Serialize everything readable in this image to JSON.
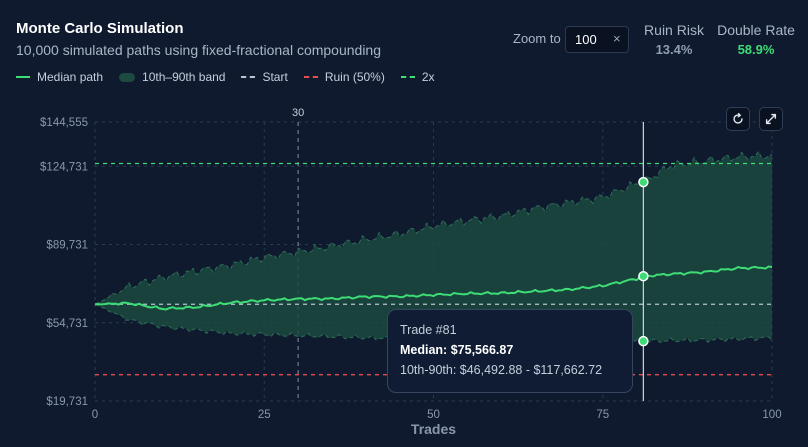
{
  "header": {
    "title": "Monte Carlo Simulation",
    "subtitle": "10,000 simulated paths using fixed-fractional compounding"
  },
  "legend": {
    "median": "Median path",
    "band": "10th–90th band",
    "start": "Start",
    "ruin": "Ruin (50%)",
    "double": "2x"
  },
  "zoom": {
    "label": "Zoom to",
    "value": "100",
    "clear": "×"
  },
  "stats": {
    "ruin_label": "Ruin Risk",
    "ruin_value": "13.4%",
    "double_label": "Double Rate",
    "double_value": "58.9%"
  },
  "icons": {
    "reset": "reset-icon",
    "expand": "expand-icon"
  },
  "tooltip": {
    "trade": "Trade #81",
    "median_label": "Median:",
    "median_value": "$75,566.87",
    "range_label": "10th-90th:",
    "range_value": "$46,492.88 - $117,662.72"
  },
  "chart_data": {
    "type": "area",
    "xlabel": "Trades",
    "xlim": [
      0,
      100
    ],
    "ylim": [
      19731,
      144555
    ],
    "x_ticks": [
      0,
      25,
      50,
      75,
      100
    ],
    "y_ticks": [
      19731,
      54731,
      89731,
      124731,
      144555
    ],
    "y_tick_labels": [
      "$19,731",
      "$54,731",
      "$89,731",
      "$124,731",
      "$144,555"
    ],
    "grid": true,
    "vertical_marker": {
      "x": 30,
      "label": "30"
    },
    "cursor_x": 81,
    "reference_lines": [
      {
        "name": "Start",
        "y": 63000,
        "color": "#b8c4d3"
      },
      {
        "name": "Ruin (50%)",
        "y": 31500,
        "color": "#e04f4f"
      },
      {
        "name": "2x",
        "y": 126000,
        "color": "#3ddc75"
      }
    ],
    "x": [
      0,
      5,
      10,
      15,
      20,
      25,
      30,
      35,
      40,
      45,
      50,
      55,
      60,
      65,
      70,
      75,
      80,
      81,
      85,
      90,
      95,
      100
    ],
    "series": [
      {
        "name": "Median path",
        "values": [
          63000,
          63500,
          61000,
          61700,
          63700,
          64800,
          65400,
          65500,
          66400,
          66500,
          67200,
          67800,
          68000,
          68800,
          69600,
          71300,
          74400,
          75567,
          76500,
          77400,
          79200,
          79500
        ],
        "color": "#3ddc75"
      },
      {
        "name": "90th percentile",
        "values": [
          63000,
          71000,
          75000,
          78000,
          80500,
          84000,
          86500,
          89000,
          92000,
          94500,
          98000,
          100500,
          102500,
          106000,
          108500,
          111000,
          117000,
          117663,
          125000,
          127000,
          129000,
          129500
        ]
      },
      {
        "name": "10th percentile",
        "values": [
          63000,
          56000,
          53000,
          51500,
          50000,
          49500,
          49000,
          48500,
          48000,
          47800,
          47600,
          47400,
          47200,
          47000,
          46900,
          46800,
          46600,
          46493,
          46800,
          47000,
          47500,
          48000
        ]
      }
    ]
  }
}
